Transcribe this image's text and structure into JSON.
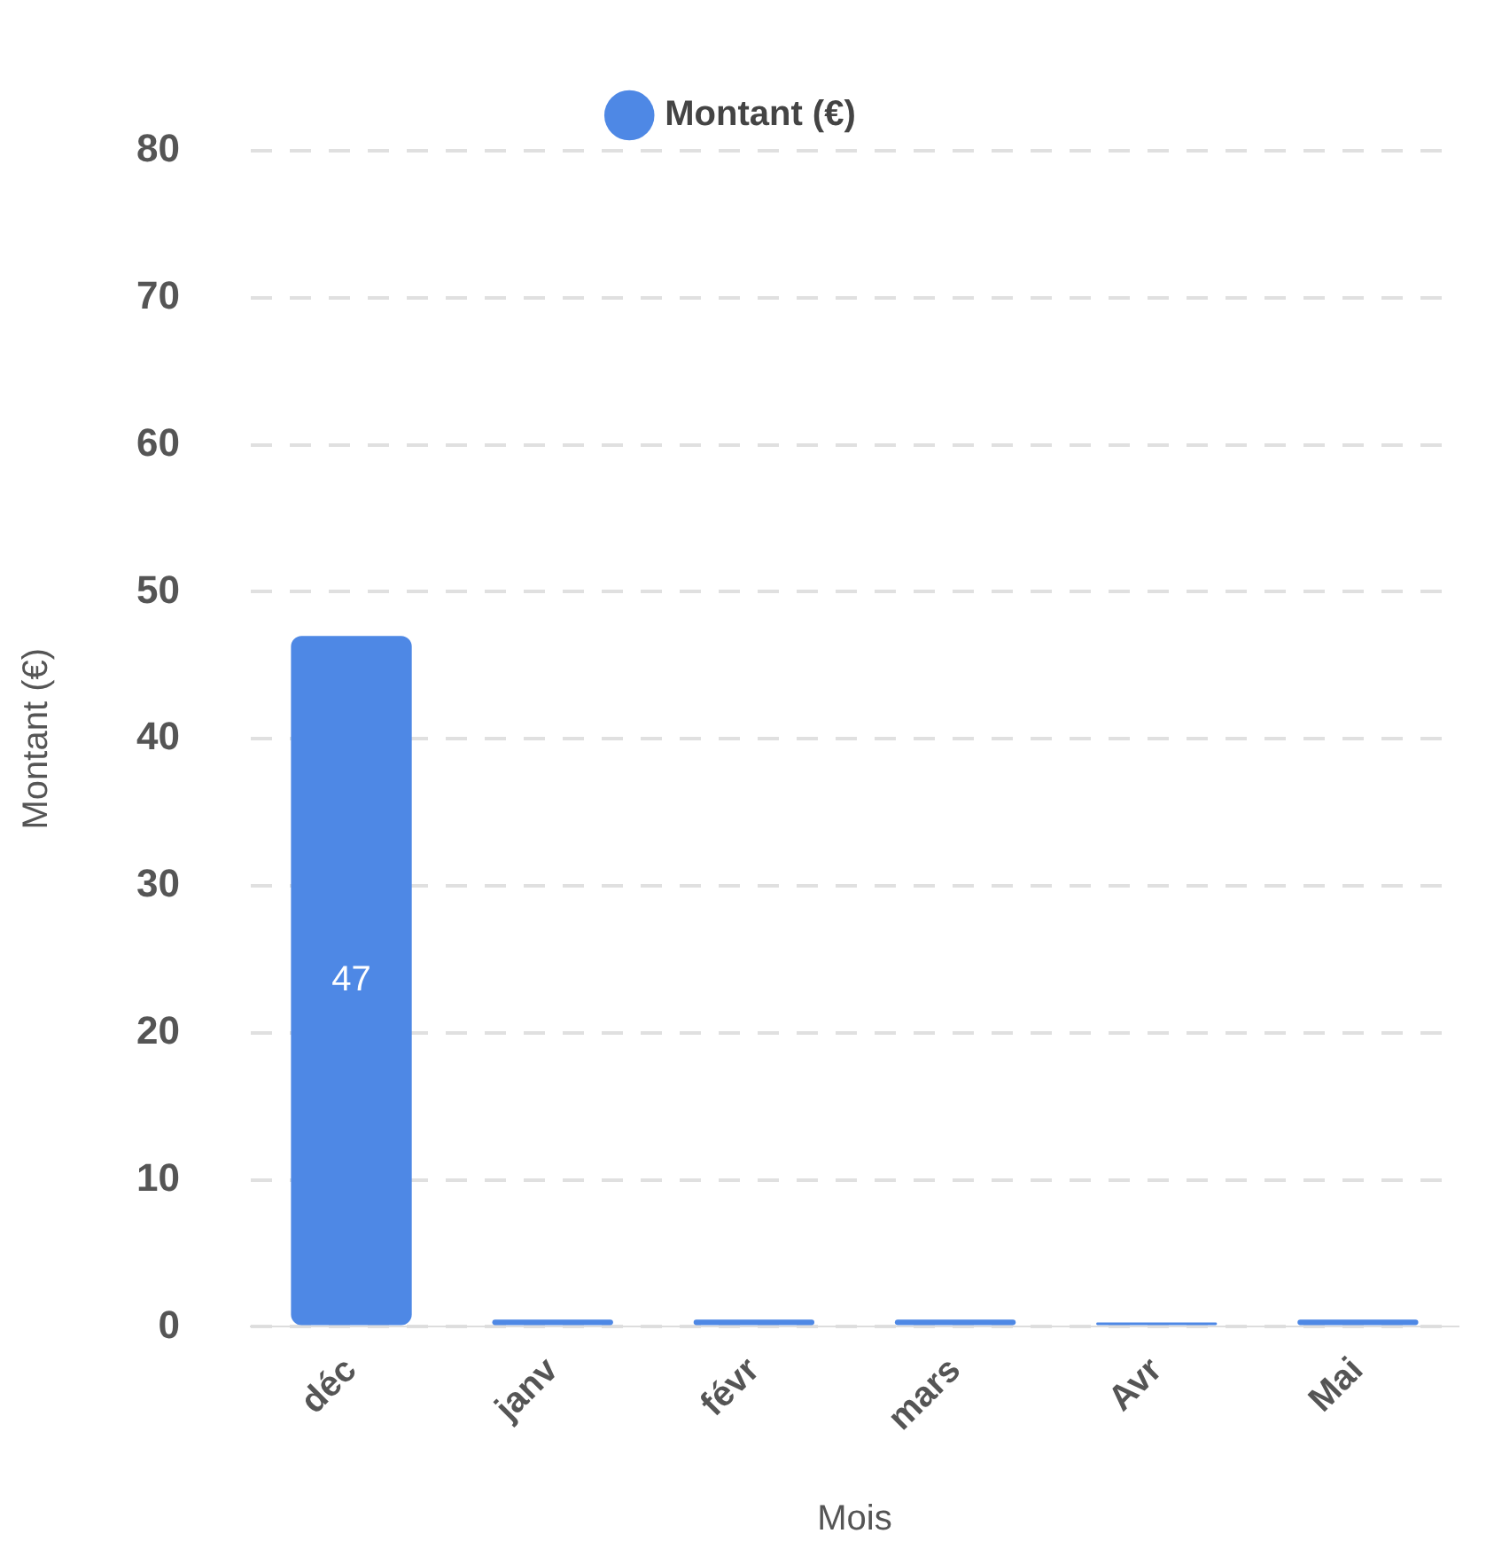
{
  "chart_data": {
    "type": "bar",
    "xlabel": "Mois",
    "ylabel": "Montant (€)",
    "categories": [
      "déc",
      "janv",
      "févr",
      "mars",
      "Avr",
      "Mai"
    ],
    "series": [
      {
        "name": "Montant (€)",
        "color": "#4e88e5",
        "values": [
          47,
          0.5,
          0.5,
          0.5,
          0.3,
          0.5
        ],
        "value_labels": [
          "47",
          null,
          null,
          null,
          null,
          null
        ]
      }
    ],
    "ylim": [
      0,
      80
    ],
    "yticks": [
      0,
      10,
      20,
      30,
      40,
      50,
      60,
      70,
      80
    ],
    "grid": "y",
    "legend": "top"
  }
}
